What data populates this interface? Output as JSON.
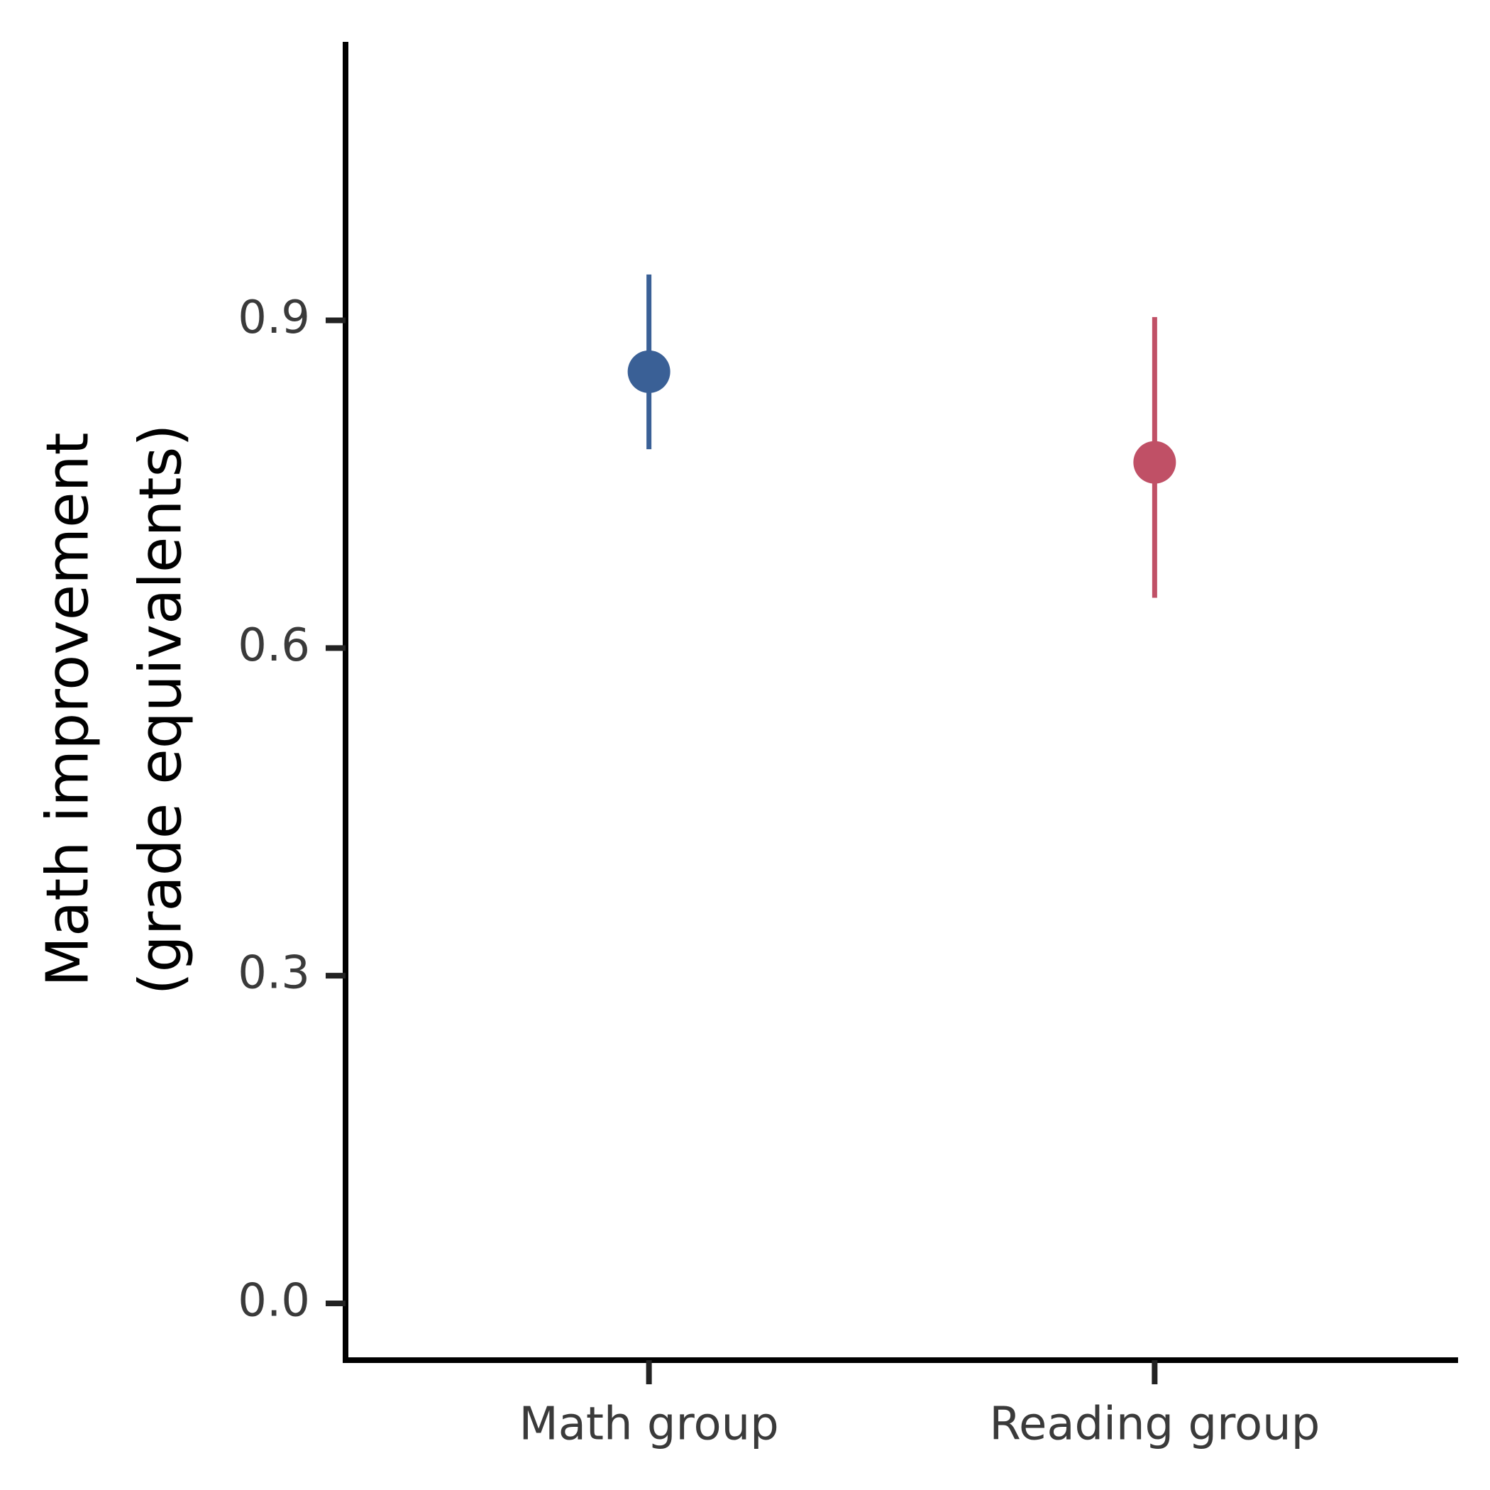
{
  "chart_data": {
    "type": "pointrange",
    "ylabel": [
      "Math improvement",
      "(grade equivalents)"
    ],
    "categories": [
      "Math group",
      "Reading group"
    ],
    "values": [
      0.853,
      0.77
    ],
    "lower": [
      0.782,
      0.646
    ],
    "upper": [
      0.942,
      0.903
    ],
    "colors": [
      "#3a6096",
      "#c05066"
    ],
    "ylim": [
      -0.052,
      1.155
    ],
    "yticks": [
      {
        "value": 0,
        "label": "0.0"
      },
      0.3,
      0.6,
      0.9
    ],
    "grid": false
  }
}
